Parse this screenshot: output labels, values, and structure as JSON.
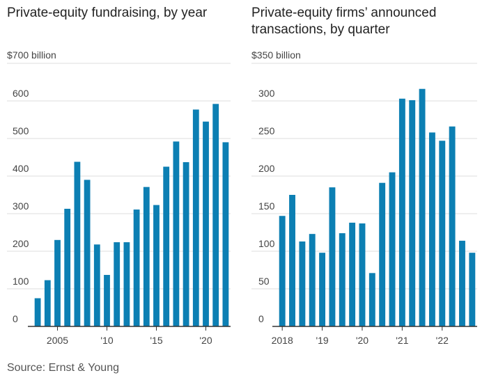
{
  "source": "Source: Ernst & Young",
  "colors": {
    "bar": "#0c7fb3",
    "grid": "#dddddd",
    "axis": "#333333",
    "text": "#444444"
  },
  "chart_data": [
    {
      "type": "bar",
      "title": "Private-equity fundraising, by year",
      "unit_label": "$700 billion",
      "ylim": [
        0,
        700
      ],
      "yticks": [
        0,
        100,
        200,
        300,
        400,
        500,
        600
      ],
      "grid": true,
      "categories": [
        "2003",
        "2004",
        "2005",
        "2006",
        "2007",
        "2008",
        "2009",
        "2010",
        "2011",
        "2012",
        "2013",
        "2014",
        "2015",
        "2016",
        "2017",
        "2018",
        "2019",
        "2020",
        "2021",
        "2022"
      ],
      "values": [
        75,
        123,
        230,
        313,
        438,
        390,
        218,
        137,
        224,
        224,
        311,
        371,
        323,
        425,
        492,
        437,
        577,
        545,
        592,
        490
      ],
      "xtick_labels": [
        {
          "category": "2005",
          "label": "2005"
        },
        {
          "category": "2010",
          "label": "'10"
        },
        {
          "category": "2015",
          "label": "'15"
        },
        {
          "category": "2020",
          "label": "'20"
        }
      ]
    },
    {
      "type": "bar",
      "title": "Private-equity firms’ announced transactions, by quarter",
      "unit_label": "$350 billion",
      "ylim": [
        0,
        350
      ],
      "yticks": [
        0,
        50,
        100,
        150,
        200,
        250,
        300
      ],
      "grid": true,
      "categories": [
        "2018 Q1",
        "2018 Q2",
        "2018 Q3",
        "2018 Q4",
        "2019 Q1",
        "2019 Q2",
        "2019 Q3",
        "2019 Q4",
        "2020 Q1",
        "2020 Q2",
        "2020 Q3",
        "2020 Q4",
        "2021 Q1",
        "2021 Q2",
        "2021 Q3",
        "2021 Q4",
        "2022 Q1",
        "2022 Q2",
        "2022 Q3",
        "2022 Q4"
      ],
      "values": [
        147,
        175,
        113,
        123,
        98,
        185,
        124,
        138,
        137,
        71,
        191,
        205,
        303,
        301,
        316,
        258,
        247,
        266,
        114,
        98
      ],
      "xtick_labels": [
        {
          "category": "2018 Q1",
          "label": "2018"
        },
        {
          "category": "2019 Q1",
          "label": "'19"
        },
        {
          "category": "2020 Q1",
          "label": "'20"
        },
        {
          "category": "2021 Q1",
          "label": "'21"
        },
        {
          "category": "2022 Q1",
          "label": "'22"
        }
      ]
    }
  ]
}
